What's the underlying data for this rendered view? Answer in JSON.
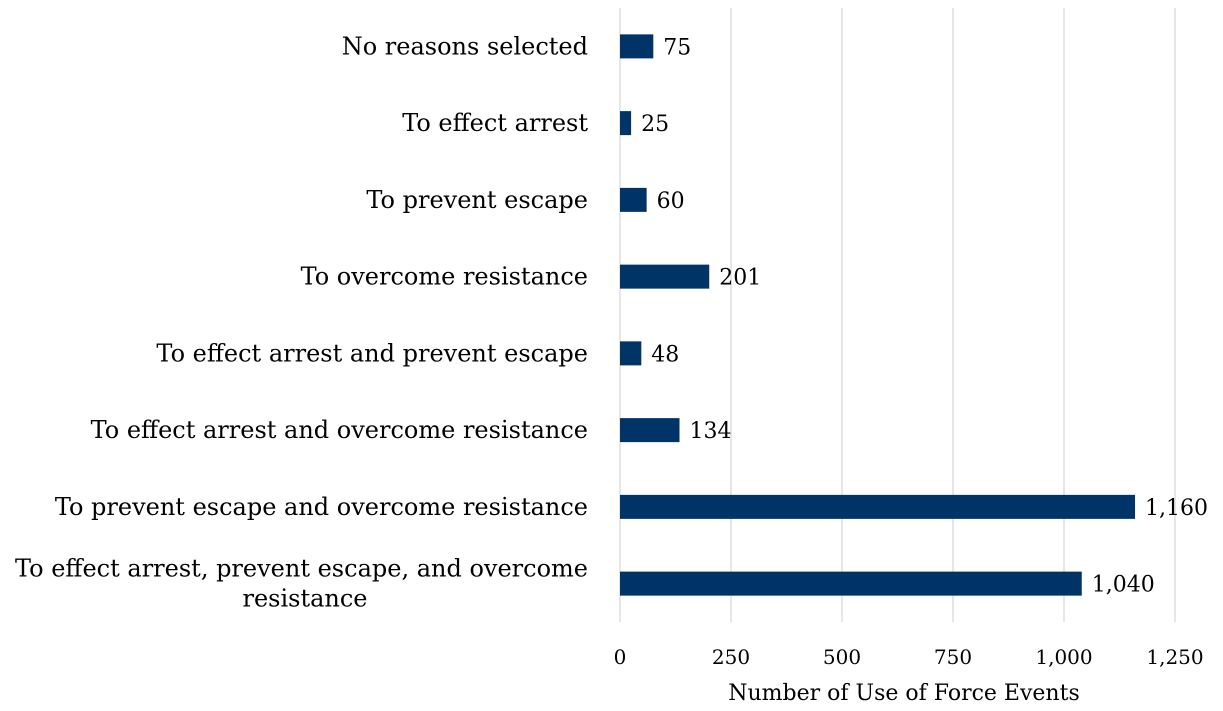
{
  "chart_data": {
    "type": "bar",
    "orientation": "horizontal",
    "categories": [
      "No reasons selected",
      "To effect arrest",
      "To prevent escape",
      "To overcome resistance",
      "To effect arrest and prevent escape",
      "To effect arrest and overcome resistance",
      "To prevent escape and overcome resistance",
      "To effect arrest, prevent escape, and overcome resistance"
    ],
    "values": [
      75,
      25,
      60,
      201,
      48,
      134,
      1160,
      1040
    ],
    "value_labels": [
      "75",
      "25",
      "60",
      "201",
      "48",
      "134",
      "1,160",
      "1,040"
    ],
    "xlabel": "Number of Use of Force Events",
    "ylabel": "",
    "title": "",
    "xlim": [
      0,
      1250
    ],
    "xticks": [
      0,
      250,
      500,
      750,
      1000,
      1250
    ],
    "xtick_labels": [
      "0",
      "250",
      "500",
      "750",
      "1,000",
      "1,250"
    ],
    "grid": "vertical",
    "legend": "none",
    "bar_color": "#003366"
  }
}
